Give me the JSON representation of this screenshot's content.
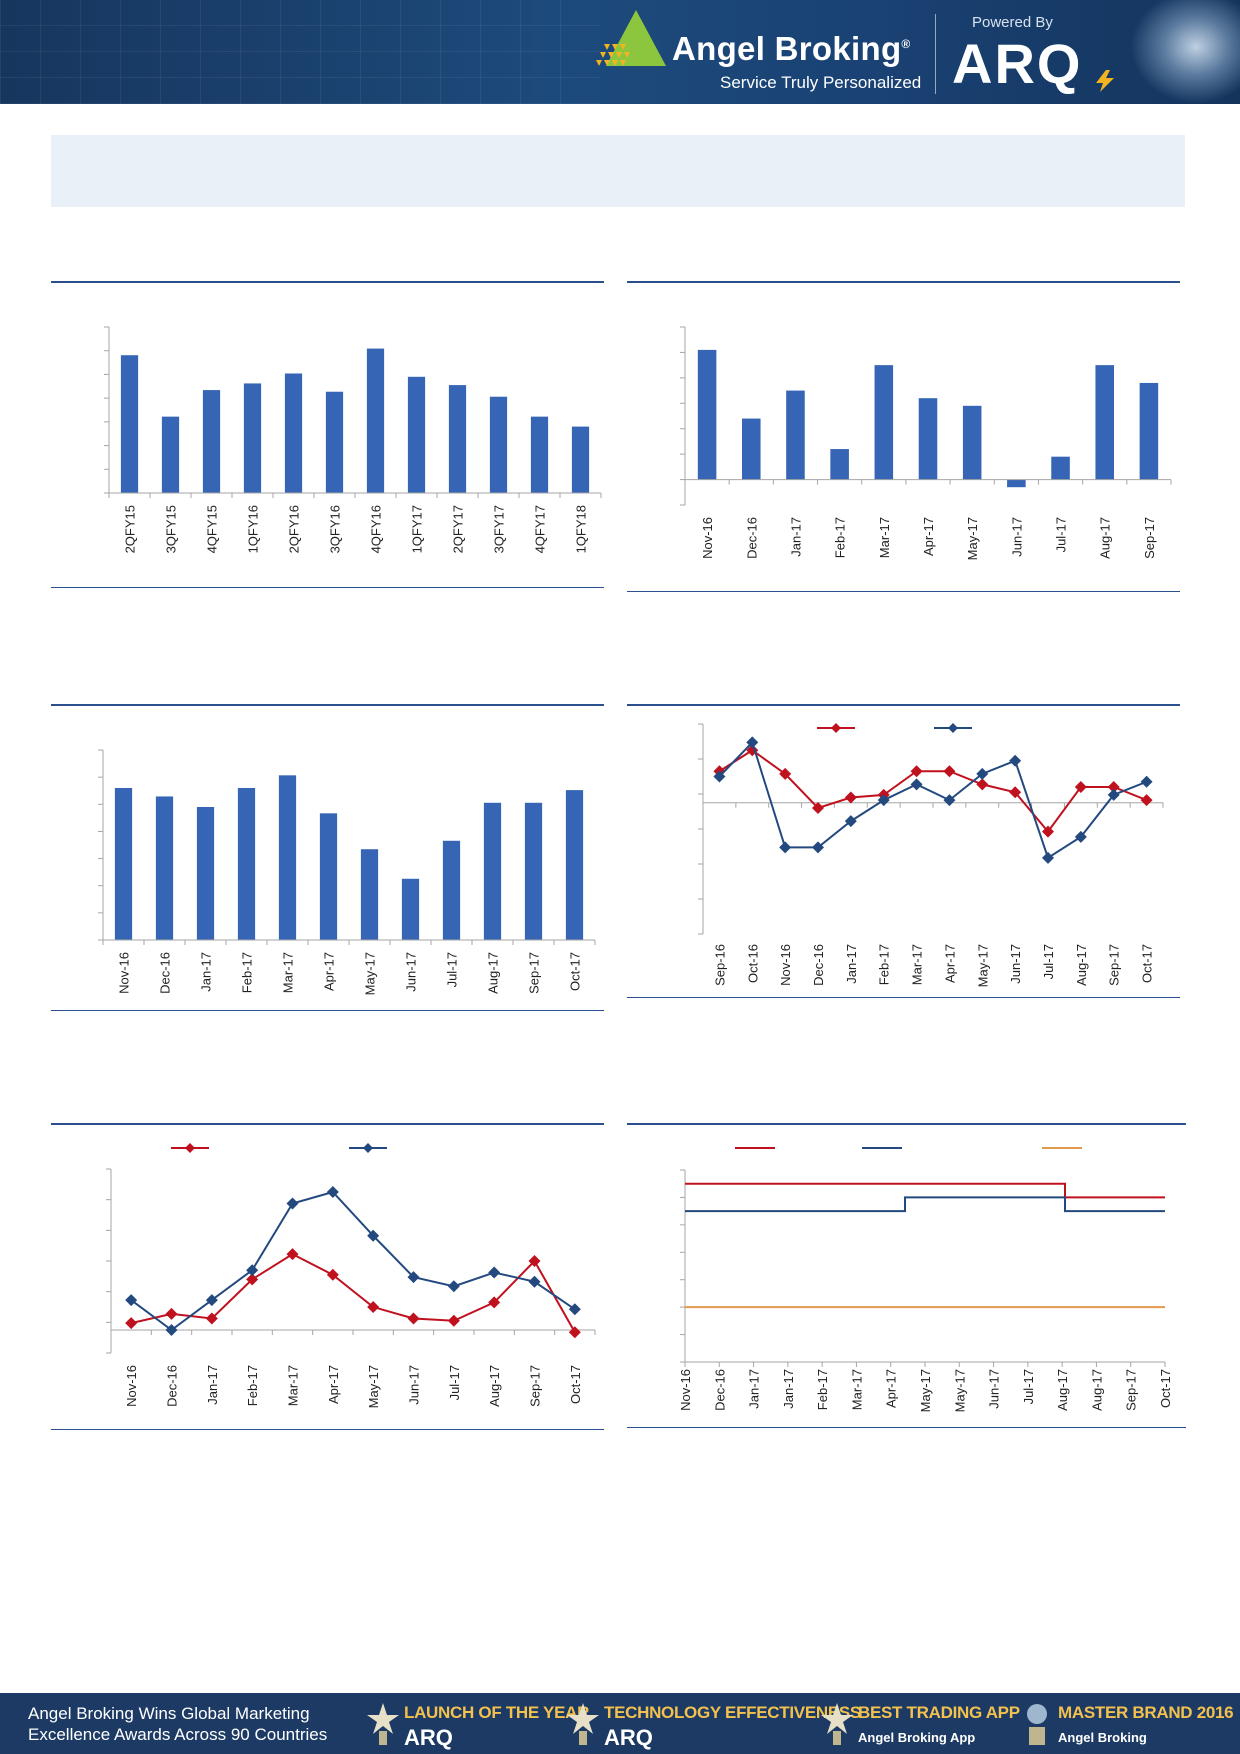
{
  "header": {
    "brand_name": "Angel Broking",
    "brand_registered": "®",
    "brand_tagline": "Service Truly Personalized",
    "powered_by": "Powered By",
    "arq_logo": "ARQ"
  },
  "colors": {
    "bar_blue": "#3565b4",
    "line_red": "#c0111f",
    "line_navy": "#23497f",
    "line_orange": "#e29a4c",
    "rule_blue": "#2b4f8f",
    "banner_bg": "#e9f0f8"
  },
  "chart_data": [
    {
      "type": "bar",
      "categories": [
        "2QFY15",
        "3QFY15",
        "4QFY15",
        "1QFY16",
        "2QFY16",
        "3QFY16",
        "4QFY16",
        "1QFY17",
        "2QFY17",
        "3QFY17",
        "4QFY17",
        "1QFY18"
      ],
      "values": [
        8.3,
        4.6,
        6.2,
        6.6,
        7.2,
        6.1,
        8.7,
        7.0,
        6.5,
        5.8,
        4.6,
        4.0
      ],
      "ylim": [
        0,
        10
      ],
      "grid": false
    },
    {
      "type": "bar",
      "categories": [
        "Nov-16",
        "Dec-16",
        "Jan-17",
        "Feb-17",
        "Mar-17",
        "Apr-17",
        "May-17",
        "Jun-17",
        "Jul-17",
        "Aug-17",
        "Sep-17"
      ],
      "values": [
        5.1,
        2.4,
        3.5,
        1.2,
        4.5,
        3.2,
        2.9,
        -0.3,
        0.9,
        4.5,
        3.8
      ],
      "ylim": [
        -1,
        6
      ],
      "grid": false
    },
    {
      "type": "bar",
      "categories": [
        "Nov-16",
        "Dec-16",
        "Jan-17",
        "Feb-17",
        "Mar-17",
        "Apr-17",
        "May-17",
        "Jun-17",
        "Jul-17",
        "Aug-17",
        "Sep-17",
        "Oct-17"
      ],
      "values": [
        7.2,
        6.8,
        6.3,
        7.2,
        7.8,
        6.0,
        4.3,
        2.9,
        4.7,
        6.5,
        6.5,
        7.1
      ],
      "ylim": [
        0,
        9
      ],
      "grid": false
    },
    {
      "type": "line",
      "categories": [
        "Sep-16",
        "Oct-16",
        "Nov-16",
        "Dec-16",
        "Jan-17",
        "Feb-17",
        "Mar-17",
        "Apr-17",
        "May-17",
        "Jun-17",
        "Jul-17",
        "Aug-17",
        "Sep-17",
        "Oct-17"
      ],
      "series": [
        {
          "values": [
            1.2,
            2.0,
            1.1,
            -0.2,
            0.2,
            0.3,
            1.2,
            1.2,
            0.7,
            0.4,
            -1.1,
            0.6,
            0.6,
            0.1
          ],
          "color": "#c0111f"
        },
        {
          "values": [
            1.0,
            2.3,
            -1.7,
            -1.7,
            -0.7,
            0.1,
            0.7,
            0.1,
            1.1,
            1.6,
            -2.1,
            -1.3,
            0.3,
            0.8
          ],
          "color": "#23497f"
        }
      ],
      "ylim": [
        -5,
        3
      ],
      "legend": "top",
      "grid": false
    },
    {
      "type": "line",
      "categories": [
        "Nov-16",
        "Dec-16",
        "Jan-17",
        "Feb-17",
        "Mar-17",
        "Apr-17",
        "May-17",
        "Jun-17",
        "Jul-17",
        "Aug-17",
        "Sep-17",
        "Oct-17"
      ],
      "series": [
        {
          "values": [
            0.3,
            0.7,
            0.5,
            2.2,
            3.3,
            2.4,
            1.0,
            0.5,
            0.4,
            1.2,
            3.0,
            -0.1
          ],
          "color": "#c0111f"
        },
        {
          "values": [
            1.3,
            0.0,
            1.3,
            2.6,
            5.5,
            6.0,
            4.1,
            2.3,
            1.9,
            2.5,
            2.1,
            0.9
          ],
          "color": "#23497f"
        }
      ],
      "ylim": [
        -1,
        7
      ],
      "legend": "top",
      "grid": false
    },
    {
      "type": "line",
      "categories": [
        "Nov-16",
        "Dec-16",
        "Jan-17",
        "Jan-17",
        "Feb-17",
        "Mar-17",
        "Apr-17",
        "May-17",
        "May-17",
        "Jun-17",
        "Jul-17",
        "Aug-17",
        "Aug-17",
        "Sep-17",
        "Oct-17"
      ],
      "series": [
        {
          "x": [
            0,
            9.5,
            9.5,
            12
          ],
          "values": [
            6.25,
            6.25,
            6.0,
            6.0
          ],
          "color": "#c0111f",
          "step": true
        },
        {
          "x": [
            0,
            5.5,
            5.5,
            9.5,
            9.5,
            12
          ],
          "values": [
            5.75,
            5.75,
            6.0,
            6.0,
            5.75,
            5.75
          ],
          "color": "#23497f",
          "step": true
        },
        {
          "x": [
            0,
            12
          ],
          "values": [
            4.0,
            4.0
          ],
          "color": "#e29a4c",
          "step": true
        }
      ],
      "ylim": [
        3,
        6.5
      ],
      "legend": "top",
      "grid": false
    }
  ],
  "footer": {
    "text_line1": "Angel Broking Wins Global Marketing",
    "text_line2": "Excellence Awards Across 90 Countries",
    "awards": [
      {
        "title": "LAUNCH OF THE YEAR",
        "sub": "ARQ"
      },
      {
        "title": "TECHNOLOGY EFFECTIVENESS",
        "sub": "ARQ"
      },
      {
        "title": "BEST TRADING APP",
        "sub": "Angel Broking App"
      },
      {
        "title": "MASTER BRAND 2016",
        "sub": "Angel Broking"
      }
    ]
  }
}
